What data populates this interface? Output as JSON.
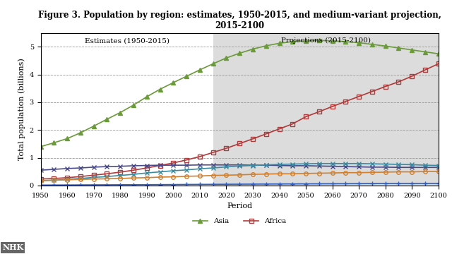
{
  "chart_data": {
    "type": "line",
    "title": "Figure 3. Population by region: estimates, 1950-2015, and medium-variant projection, 2015-2100",
    "annotations": [
      "Estimates (1950-2015)",
      "Projections (2015-2100)"
    ],
    "shaded_span": [
      2015,
      2100
    ],
    "source": "NHK",
    "x_label": "Period",
    "y_label": "Total population (billions)",
    "x": [
      1950,
      1955,
      1960,
      1965,
      1970,
      1975,
      1980,
      1985,
      1990,
      1995,
      2000,
      2005,
      2010,
      2015,
      2020,
      2025,
      2030,
      2035,
      2040,
      2045,
      2050,
      2055,
      2060,
      2065,
      2070,
      2075,
      2080,
      2085,
      2090,
      2095,
      2100
    ],
    "xlim": [
      1950,
      2100
    ],
    "xticks": [
      1950,
      1960,
      1970,
      1980,
      1990,
      2000,
      2010,
      2020,
      2030,
      2040,
      2050,
      2060,
      2070,
      2080,
      2090,
      2100
    ],
    "ylim": [
      0,
      5.5
    ],
    "yticks": [
      0,
      1,
      2,
      3,
      4,
      5
    ],
    "grid": true,
    "legend": "bottom",
    "series": [
      {
        "name": "Asia",
        "color": "#6a9a3a",
        "marker": "triangle",
        "values": [
          1.4,
          1.54,
          1.69,
          1.9,
          2.14,
          2.39,
          2.63,
          2.9,
          3.2,
          3.47,
          3.71,
          3.94,
          4.17,
          4.39,
          4.6,
          4.77,
          4.92,
          5.04,
          5.13,
          5.19,
          5.22,
          5.23,
          5.22,
          5.19,
          5.15,
          5.09,
          5.03,
          4.96,
          4.89,
          4.82,
          4.75
        ]
      },
      {
        "name": "Africa",
        "color": "#b03a3a",
        "marker": "square",
        "values": [
          0.23,
          0.25,
          0.28,
          0.32,
          0.37,
          0.42,
          0.48,
          0.55,
          0.63,
          0.72,
          0.81,
          0.92,
          1.04,
          1.19,
          1.34,
          1.51,
          1.68,
          1.86,
          2.04,
          2.22,
          2.48,
          2.66,
          2.85,
          3.03,
          3.21,
          3.39,
          3.57,
          3.74,
          3.94,
          4.17,
          4.39
        ]
      },
      {
        "color": "#4a4a8a",
        "marker": "x",
        "values": [
          0.55,
          0.58,
          0.61,
          0.63,
          0.66,
          0.68,
          0.69,
          0.71,
          0.72,
          0.73,
          0.73,
          0.73,
          0.74,
          0.74,
          0.74,
          0.74,
          0.73,
          0.73,
          0.72,
          0.71,
          0.71,
          0.7,
          0.69,
          0.68,
          0.67,
          0.66,
          0.66,
          0.65,
          0.65,
          0.65,
          0.65
        ]
      },
      {
        "color": "#3a8aa0",
        "marker": "x",
        "values": [
          0.17,
          0.19,
          0.22,
          0.25,
          0.29,
          0.32,
          0.36,
          0.4,
          0.45,
          0.49,
          0.53,
          0.56,
          0.6,
          0.63,
          0.67,
          0.7,
          0.72,
          0.74,
          0.76,
          0.77,
          0.78,
          0.79,
          0.79,
          0.79,
          0.79,
          0.78,
          0.77,
          0.76,
          0.75,
          0.73,
          0.72
        ]
      },
      {
        "color": "#d08030",
        "marker": "circle",
        "values": [
          0.17,
          0.19,
          0.2,
          0.22,
          0.23,
          0.24,
          0.25,
          0.27,
          0.28,
          0.3,
          0.31,
          0.33,
          0.34,
          0.36,
          0.37,
          0.38,
          0.4,
          0.41,
          0.42,
          0.42,
          0.43,
          0.44,
          0.45,
          0.46,
          0.46,
          0.47,
          0.48,
          0.49,
          0.49,
          0.5,
          0.5
        ]
      },
      {
        "color": "#3060c0",
        "marker": "plus",
        "values": [
          0.013,
          0.014,
          0.016,
          0.018,
          0.02,
          0.021,
          0.023,
          0.025,
          0.027,
          0.029,
          0.031,
          0.034,
          0.037,
          0.039,
          0.042,
          0.045,
          0.048,
          0.05,
          0.053,
          0.055,
          0.057,
          0.059,
          0.061,
          0.063,
          0.065,
          0.067,
          0.068,
          0.069,
          0.07,
          0.071,
          0.072
        ]
      }
    ]
  }
}
